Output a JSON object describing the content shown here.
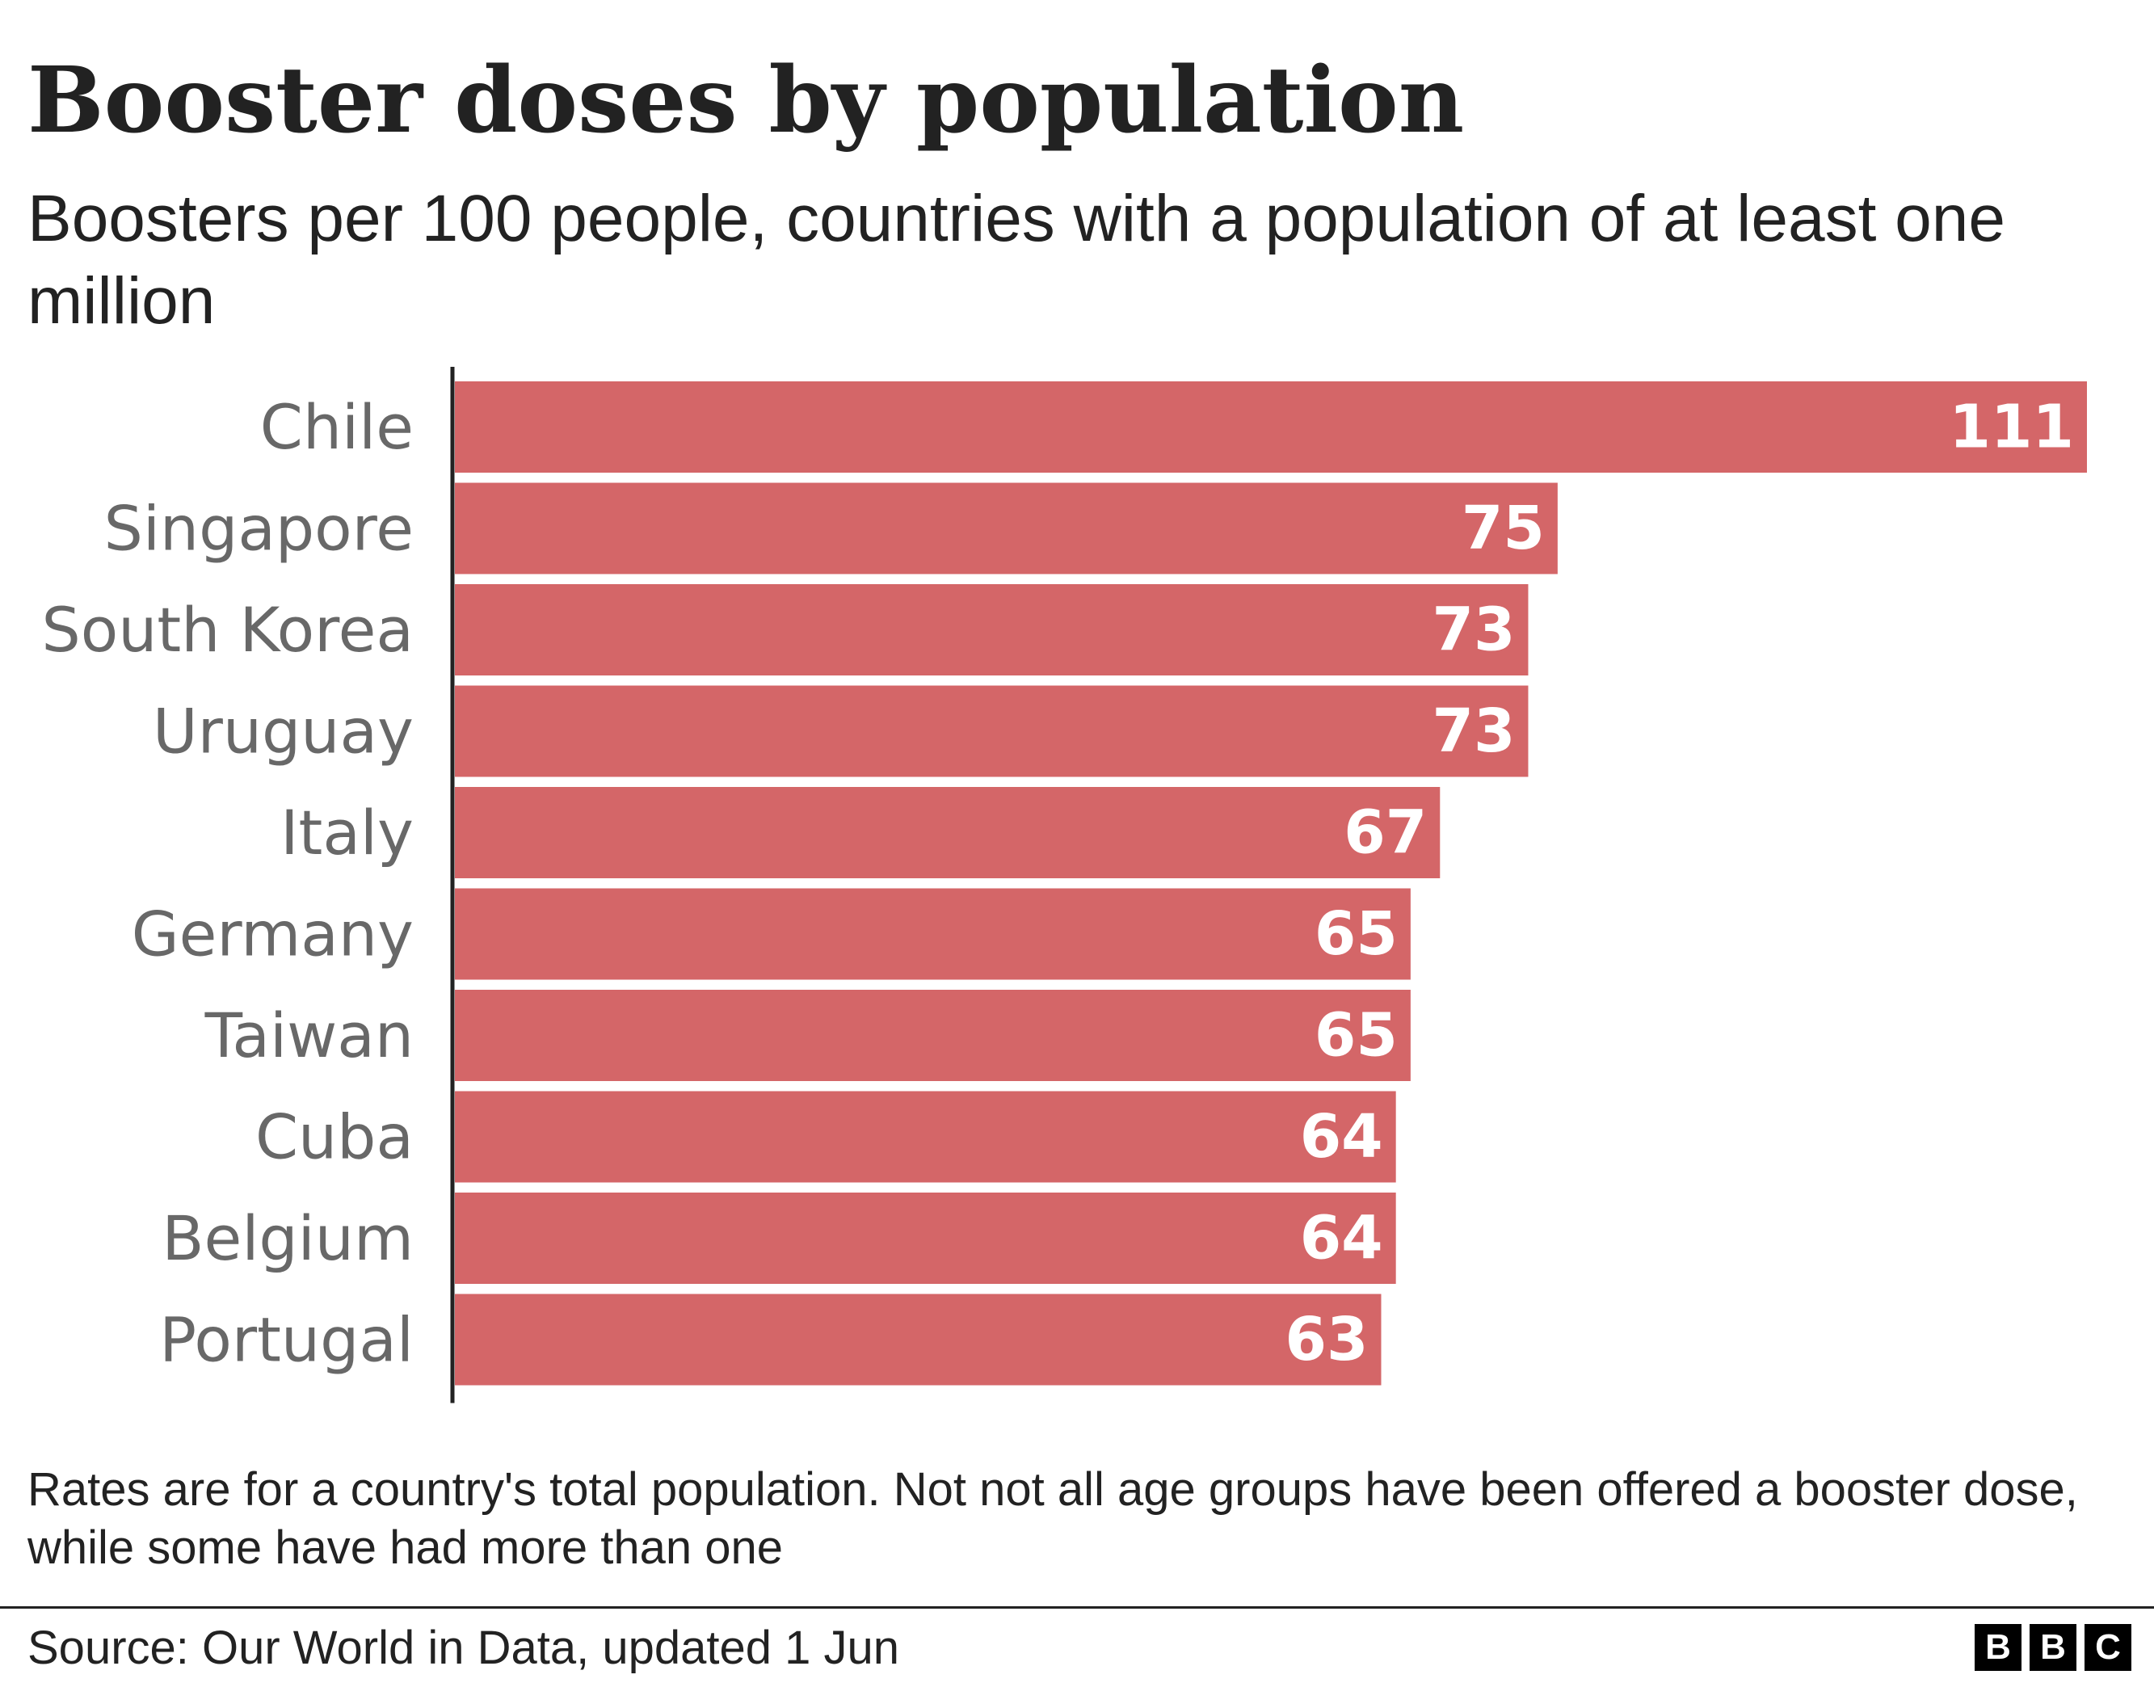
{
  "header": {
    "title": "Booster doses by population",
    "subtitle": "Boosters per 100 people, countries with a population of at least one million"
  },
  "chart_data": {
    "type": "bar",
    "orientation": "horizontal",
    "categories": [
      "Chile",
      "Singapore",
      "South Korea",
      "Uruguay",
      "Italy",
      "Germany",
      "Taiwan",
      "Cuba",
      "Belgium",
      "Portugal"
    ],
    "values": [
      111,
      75,
      73,
      73,
      67,
      65,
      65,
      64,
      64,
      63
    ],
    "xlim": [
      0,
      111
    ],
    "bar_color": "#d46668",
    "grid": false,
    "legend": "none"
  },
  "footer": {
    "note": "Rates are for a country's total population. Not not all age groups have been offered a booster dose, while some have had more than one",
    "source": "Source: Our World in Data, updated 1 Jun",
    "logo": [
      "B",
      "B",
      "C"
    ]
  }
}
